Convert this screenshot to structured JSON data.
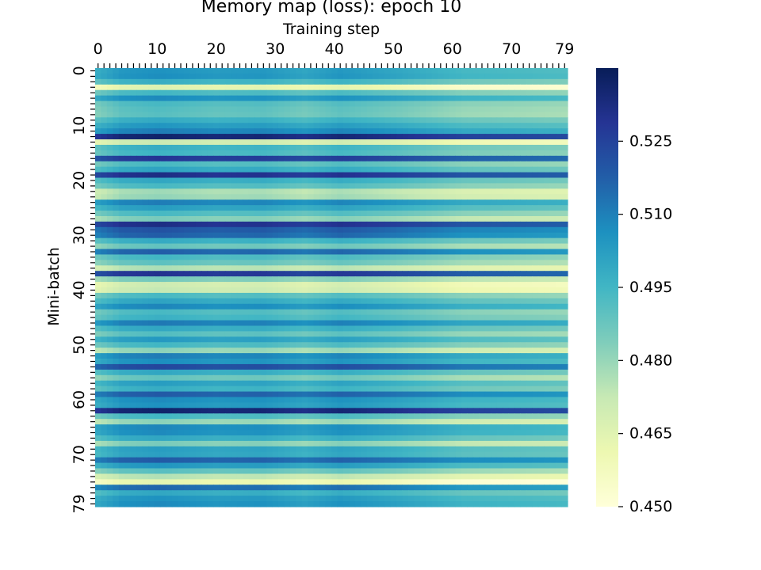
{
  "chart_data": {
    "type": "heatmap",
    "title": "Memory map (loss): epoch 10",
    "xlabel": "Training step",
    "ylabel": "Mini-batch",
    "rows": 80,
    "cols": 80,
    "x_tick_values": [
      0,
      10,
      20,
      30,
      40,
      50,
      60,
      70,
      79
    ],
    "x_tick_labels": [
      "0",
      "10",
      "20",
      "30",
      "40",
      "50",
      "60",
      "70",
      "79"
    ],
    "y_tick_values": [
      0,
      10,
      20,
      30,
      40,
      50,
      60,
      70,
      79
    ],
    "y_tick_labels": [
      "0",
      "10",
      "20",
      "30",
      "40",
      "50",
      "60",
      "70",
      "79"
    ],
    "x_axis_position": "top",
    "colormap": "YlGnBu",
    "colormap_stops": [
      "#ffffd9",
      "#edf8b1",
      "#c7e9b4",
      "#7fcdbb",
      "#41b6c4",
      "#1d91c0",
      "#225ea8",
      "#253494",
      "#081d58"
    ],
    "value_range": [
      0.45,
      0.54
    ],
    "colorbar_ticks": [
      0.45,
      0.465,
      0.48,
      0.495,
      0.51,
      0.525
    ],
    "colorbar_labels": [
      "0.450",
      "0.465",
      "0.480",
      "0.495",
      "0.510",
      "0.525"
    ],
    "row_base_loss": [
      0.5,
      0.501,
      0.492,
      0.46,
      0.489,
      0.502,
      0.488,
      0.486,
      0.485,
      0.493,
      0.499,
      0.505,
      0.531,
      0.466,
      0.492,
      0.49,
      0.523,
      0.488,
      0.495,
      0.526,
      0.494,
      0.488,
      0.473,
      0.475,
      0.505,
      0.497,
      0.488,
      0.479,
      0.526,
      0.515,
      0.512,
      0.493,
      0.483,
      0.512,
      0.489,
      0.484,
      0.471,
      0.524,
      0.48,
      0.465,
      0.467,
      0.488,
      0.495,
      0.503,
      0.488,
      0.491,
      0.506,
      0.494,
      0.486,
      0.498,
      0.489,
      0.476,
      0.505,
      0.501,
      0.518,
      0.494,
      0.483,
      0.497,
      0.492,
      0.513,
      0.502,
      0.5,
      0.531,
      0.489,
      0.476,
      0.503,
      0.502,
      0.494,
      0.479,
      0.497,
      0.496,
      0.513,
      0.499,
      0.485,
      0.47,
      0.458,
      0.51,
      0.494,
      0.5,
      0.502
    ],
    "column_trend": [
      [
        0,
        -0.002
      ],
      [
        4,
        0.004
      ],
      [
        10,
        0.006
      ],
      [
        20,
        0.003
      ],
      [
        28,
        0.004
      ],
      [
        35,
        0.0
      ],
      [
        41,
        0.004
      ],
      [
        50,
        0.0
      ],
      [
        62,
        -0.006
      ],
      [
        72,
        -0.007
      ],
      [
        79,
        -0.008
      ]
    ]
  }
}
